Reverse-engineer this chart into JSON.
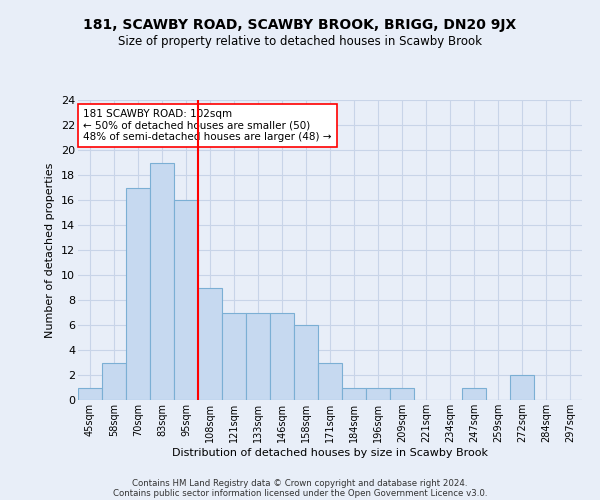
{
  "title": "181, SCAWBY ROAD, SCAWBY BROOK, BRIGG, DN20 9JX",
  "subtitle": "Size of property relative to detached houses in Scawby Brook",
  "xlabel": "Distribution of detached houses by size in Scawby Brook",
  "ylabel": "Number of detached properties",
  "bar_labels": [
    "45sqm",
    "58sqm",
    "70sqm",
    "83sqm",
    "95sqm",
    "108sqm",
    "121sqm",
    "133sqm",
    "146sqm",
    "158sqm",
    "171sqm",
    "184sqm",
    "196sqm",
    "209sqm",
    "221sqm",
    "234sqm",
    "247sqm",
    "259sqm",
    "272sqm",
    "284sqm",
    "297sqm"
  ],
  "bar_values": [
    1,
    3,
    17,
    19,
    16,
    9,
    7,
    7,
    7,
    6,
    3,
    1,
    1,
    1,
    0,
    0,
    1,
    0,
    2,
    0,
    0
  ],
  "bar_color": "#c6d9f0",
  "bar_edgecolor": "#7bafd4",
  "vline_x": 4.5,
  "vline_color": "red",
  "annotation_text": "181 SCAWBY ROAD: 102sqm\n← 50% of detached houses are smaller (50)\n48% of semi-detached houses are larger (48) →",
  "annotation_box_color": "white",
  "annotation_box_edgecolor": "red",
  "ylim": [
    0,
    24
  ],
  "yticks": [
    0,
    2,
    4,
    6,
    8,
    10,
    12,
    14,
    16,
    18,
    20,
    22,
    24
  ],
  "grid_color": "#c8d4e8",
  "bg_color": "#e8eef8",
  "footer1": "Contains HM Land Registry data © Crown copyright and database right 2024.",
  "footer2": "Contains public sector information licensed under the Open Government Licence v3.0."
}
